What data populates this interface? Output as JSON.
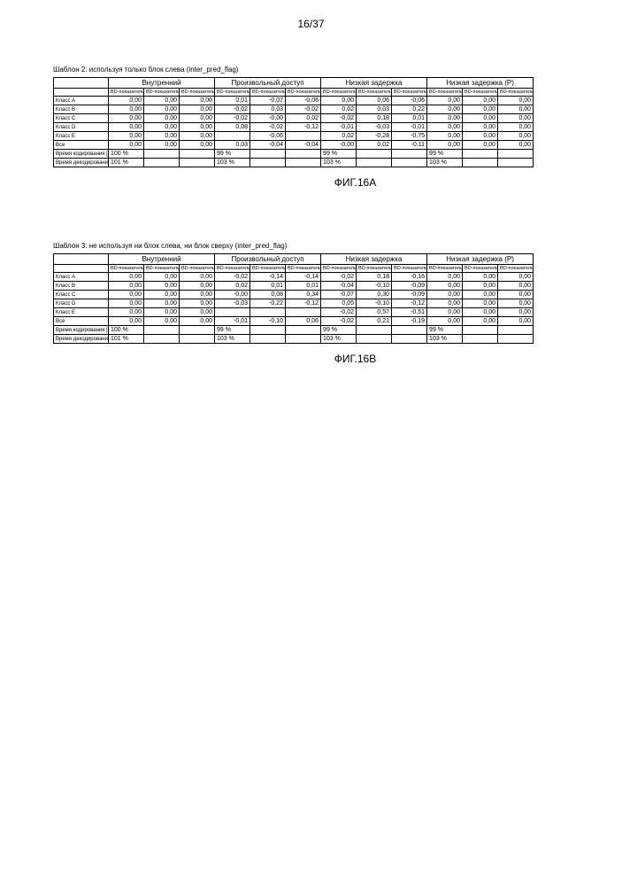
{
  "page_number": "16/37",
  "tables": [
    {
      "caption": "Шаблон 2: используя только блок слева (inter_pred_flag)",
      "fig_label": "ФИГ.16A",
      "group_headers": [
        "Внутренний",
        "Произвольный доступ",
        "Низкая задержка",
        "Низкая задержка (P)"
      ],
      "sub_headers": [
        "BD-показатель",
        "BD-показатель",
        "BD-показатель",
        "BD-показатель",
        "BD-показатель",
        "BD-показатель",
        "BD-показатель",
        "BD-показатель",
        "BD-показатель",
        "BD-показатель",
        "BD-показатель",
        "BD-показатель"
      ],
      "rows": [
        {
          "label": "Класс A",
          "v": [
            "0,00",
            "0,00",
            "0,00",
            "0,01",
            "-0,07",
            "-0,06",
            "0,00",
            "0,06",
            "-0,06",
            "0,00",
            "0,00",
            "0,00"
          ]
        },
        {
          "label": "Класс B",
          "v": [
            "0,00",
            "0,00",
            "0,00",
            "-0,02",
            "0,03",
            "-0,02",
            "0,02",
            "0,03",
            "0,22",
            "0,00",
            "0,00",
            "0,00"
          ]
        },
        {
          "label": "Класс C",
          "v": [
            "0,00",
            "0,00",
            "0,00",
            "-0,02",
            "-0,00",
            "0,02",
            "-0,02",
            "0,18",
            "0,01",
            "0,00",
            "0,00",
            "0,00"
          ]
        },
        {
          "label": "Класс D",
          "v": [
            "0,00",
            "0,00",
            "0,00",
            "0,08",
            "-0,02",
            "-0,12",
            "-0,01",
            "-0,03",
            "-0,01",
            "0,00",
            "0,00",
            "0,00"
          ]
        },
        {
          "label": "Класс E",
          "v": [
            "0,00",
            "0,00",
            "0,00",
            "",
            "-0,06",
            "",
            "0,02",
            "-0,28",
            "-0,75",
            "0,00",
            "0,00",
            "0,00"
          ]
        },
        {
          "label": "Все",
          "v": [
            "0,00",
            "0,00",
            "0,00",
            "0,03",
            "-0,04",
            "-0,04",
            "-0,00",
            "0,02",
            "-0,11",
            "0,00",
            "0,00",
            "0,00"
          ]
        }
      ],
      "footer": [
        {
          "label": "Время кодирования [%]",
          "v": [
            "100 %",
            "",
            "",
            "99 %",
            "",
            "",
            "99 %",
            "",
            "",
            "99 %",
            "",
            ""
          ]
        },
        {
          "label": "Время декодирования [%]",
          "v": [
            "101 %",
            "",
            "",
            "103 %",
            "",
            "",
            "103 %",
            "",
            "",
            "103 %",
            "",
            ""
          ]
        }
      ]
    },
    {
      "caption": "Шаблон 3: не используя ни блок слева, ни блок сверху (inter_pred_flag)",
      "fig_label": "ФИГ.16B",
      "group_headers": [
        "Внутренний",
        "Произвольный доступ",
        "Низкая задержка",
        "Низкая задержка (P)"
      ],
      "sub_headers": [
        "BD-показатель",
        "BD-показатель",
        "BD-показатель",
        "BD-показатель",
        "BD-показатель",
        "BD-показатель",
        "BD-показатель",
        "BD-показатель",
        "BD-показатель",
        "BD-показатель",
        "BD-показатель",
        "BD-показатель"
      ],
      "rows": [
        {
          "label": "Класс A",
          "v": [
            "0,00",
            "0,00",
            "0,00",
            "-0,02",
            "-0,14",
            "-0,14",
            "-0,02",
            "0,18",
            "-0,16",
            "0,00",
            "0,00",
            "0,00"
          ]
        },
        {
          "label": "Класс B",
          "v": [
            "0,00",
            "0,00",
            "0,00",
            "0,02",
            "0,01",
            "0,01",
            "-0,04",
            "-0,10",
            "-0,09",
            "0,00",
            "0,00",
            "0,00"
          ]
        },
        {
          "label": "Класс C",
          "v": [
            "0,00",
            "0,00",
            "0,00",
            "-0,00",
            "0,08",
            "0,34",
            "-0,07",
            "0,30",
            "-0,09",
            "0,00",
            "0,00",
            "0,00"
          ]
        },
        {
          "label": "Класс D",
          "v": [
            "0,00",
            "0,00",
            "0,00",
            "-0,03",
            "-0,22",
            "-0,12",
            "0,05",
            "-0,10",
            "-0,12",
            "0,00",
            "0,00",
            "0,00"
          ]
        },
        {
          "label": "Класс E",
          "v": [
            "0,00",
            "0,00",
            "0,00",
            "",
            "",
            "",
            "-0,02",
            "0,57",
            "-0,51",
            "0,00",
            "0,00",
            "0,00"
          ]
        },
        {
          "label": "Все",
          "v": [
            "0,00",
            "0,00",
            "0,00",
            "-0,01",
            "-0,10",
            "0,06",
            "-0,02",
            "0,21",
            "-0,19",
            "0,00",
            "0,00",
            "0,00"
          ]
        }
      ],
      "footer": [
        {
          "label": "Время кодирования [%]",
          "v": [
            "100 %",
            "",
            "",
            "99 %",
            "",
            "",
            "99 %",
            "",
            "",
            "99 %",
            "",
            ""
          ]
        },
        {
          "label": "Время декодирования [%]",
          "v": [
            "101 %",
            "",
            "",
            "103 %",
            "",
            "",
            "103 %",
            "",
            "",
            "103 %",
            "",
            ""
          ]
        }
      ]
    }
  ]
}
